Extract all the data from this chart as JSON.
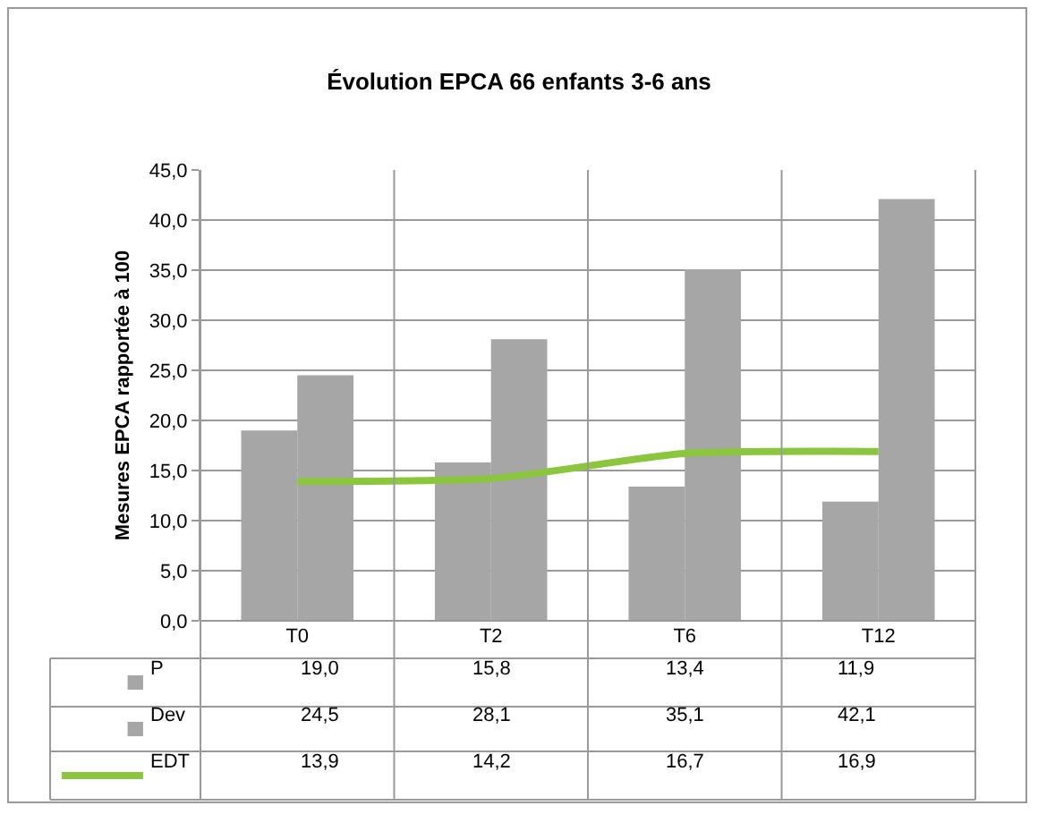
{
  "chart_data": {
    "type": "bar",
    "title": "Évolution EPCA 66 enfants 3-6 ans",
    "ylabel": "Mesures EPCA rapportée à 100",
    "categories": [
      "T0",
      "T2",
      "T6",
      "T12"
    ],
    "series": [
      {
        "name": "P",
        "color": "#a6a6a6",
        "values": [
          19.0,
          15.8,
          13.4,
          11.9
        ],
        "value_labels": [
          "19,0",
          "15,8",
          "13,4",
          "11,9"
        ]
      },
      {
        "name": "Dev",
        "color": "#a6a6a6",
        "values": [
          24.5,
          28.1,
          35.1,
          42.1
        ],
        "value_labels": [
          "24,5",
          "28,1",
          "35,1",
          "42,1"
        ]
      },
      {
        "name": "EDT",
        "type": "line",
        "color": "#8cc63e",
        "values": [
          13.9,
          14.2,
          16.7,
          16.9
        ],
        "value_labels": [
          "13,9",
          "14,2",
          "16,7",
          "16,9"
        ]
      }
    ],
    "ylim": [
      0,
      45
    ],
    "yticks": [
      {
        "value": 0,
        "label": "0,0"
      },
      {
        "value": 5,
        "label": "5,0"
      },
      {
        "value": 10,
        "label": "10,0"
      },
      {
        "value": 15,
        "label": "15,0"
      },
      {
        "value": 20,
        "label": "20,0"
      },
      {
        "value": 25,
        "label": "25,0"
      },
      {
        "value": 30,
        "label": "30,0"
      },
      {
        "value": 35,
        "label": "35,0"
      },
      {
        "value": 40,
        "label": "40,0"
      },
      {
        "value": 45,
        "label": "45,0"
      }
    ],
    "grid": true,
    "legend": "bottom",
    "marker": "none",
    "line_style": "solid"
  }
}
